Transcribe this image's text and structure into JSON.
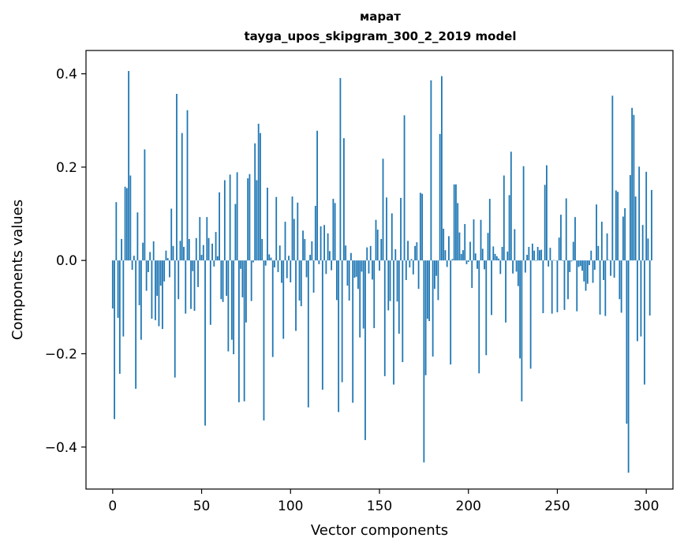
{
  "chart_data": {
    "type": "bar",
    "title_line1": "марат",
    "title_line2": "tayga_upos_skipgram_300_2_2019 model",
    "xlabel": "Vector components",
    "ylabel": "Components values",
    "xlim": [
      -15,
      315
    ],
    "ylim": [
      -0.49,
      0.45
    ],
    "xticks": [
      0,
      50,
      100,
      150,
      200,
      250,
      300
    ],
    "xtick_labels": [
      "0",
      "50",
      "100",
      "150",
      "200",
      "250",
      "300"
    ],
    "yticks": [
      -0.4,
      -0.2,
      0.0,
      0.2,
      0.4
    ],
    "ytick_labels": [
      "−0.4",
      "−0.2",
      "0.0",
      "0.2",
      "0.4"
    ],
    "bar_color": "#1f77b4",
    "values": [
      -0.103,
      -0.34,
      0.125,
      -0.123,
      -0.243,
      0.046,
      -0.163,
      0.158,
      0.155,
      0.406,
      0.182,
      -0.02,
      0.01,
      -0.275,
      0.103,
      -0.096,
      -0.17,
      0.038,
      0.238,
      -0.065,
      -0.025,
      0.018,
      -0.125,
      0.041,
      -0.128,
      -0.076,
      -0.141,
      -0.054,
      -0.147,
      -0.045,
      0.021,
      0.005,
      -0.036,
      0.111,
      0.031,
      -0.251,
      0.357,
      -0.083,
      0.042,
      0.273,
      0.029,
      -0.114,
      0.322,
      0.046,
      -0.104,
      -0.023,
      -0.108,
      0.048,
      -0.057,
      0.093,
      0.012,
      0.033,
      -0.354,
      0.093,
      0.048,
      -0.138,
      0.036,
      -0.013,
      0.061,
      0.009,
      0.146,
      -0.083,
      -0.089,
      0.172,
      -0.076,
      -0.195,
      0.184,
      -0.17,
      -0.201,
      0.121,
      0.189,
      -0.304,
      -0.018,
      -0.079,
      -0.302,
      -0.133,
      0.176,
      0.185,
      -0.087,
      -0.004,
      0.251,
      0.172,
      0.293,
      0.273,
      0.046,
      -0.343,
      -0.011,
      0.156,
      0.013,
      0.006,
      -0.207,
      -0.015,
      0.136,
      -0.025,
      0.032,
      -0.048,
      -0.168,
      0.083,
      -0.038,
      0.01,
      -0.047,
      0.137,
      0.089,
      -0.151,
      0.124,
      -0.086,
      -0.098,
      0.064,
      0.046,
      -0.036,
      -0.315,
      0.012,
      0.041,
      -0.069,
      0.117,
      0.278,
      -0.008,
      0.073,
      -0.277,
      0.076,
      -0.029,
      0.058,
      0.02,
      -0.021,
      0.132,
      0.123,
      -0.085,
      -0.325,
      0.391,
      -0.261,
      0.262,
      0.032,
      -0.054,
      -0.086,
      0.016,
      -0.305,
      -0.037,
      -0.035,
      -0.061,
      -0.165,
      -0.024,
      -0.146,
      -0.385,
      0.028,
      -0.028,
      0.031,
      -0.041,
      -0.145,
      0.087,
      0.066,
      -0.022,
      0.046,
      0.218,
      -0.248,
      0.135,
      -0.107,
      -0.087,
      0.101,
      -0.266,
      0.024,
      -0.088,
      -0.157,
      0.134,
      -0.218,
      0.311,
      -0.042,
      0.042,
      -0.015,
      0.003,
      -0.03,
      0.031,
      0.039,
      -0.061,
      0.145,
      0.143,
      -0.433,
      -0.246,
      -0.125,
      -0.13,
      0.386,
      -0.206,
      -0.061,
      -0.033,
      -0.085,
      0.271,
      0.395,
      0.068,
      0.022,
      -0.014,
      0.052,
      -0.223,
      0.003,
      0.163,
      0.163,
      0.123,
      0.06,
      0.014,
      0.022,
      0.078,
      -0.008,
      -0.003,
      0.04,
      -0.059,
      0.088,
      0.015,
      -0.018,
      -0.242,
      0.087,
      0.025,
      -0.019,
      -0.203,
      0.059,
      0.132,
      -0.117,
      0.03,
      0.014,
      0.009,
      0.004,
      -0.029,
      0.029,
      0.182,
      -0.133,
      0.019,
      0.14,
      0.233,
      -0.028,
      0.067,
      -0.024,
      -0.055,
      -0.21,
      -0.302,
      0.202,
      -0.026,
      0.012,
      0.029,
      -0.232,
      0.036,
      0.021,
      -0.001,
      0.029,
      0.022,
      0.023,
      -0.113,
      0.162,
      0.204,
      -0.013,
      0.027,
      -0.114,
      0.001,
      0.0,
      -0.111,
      0.049,
      0.098,
      -0.001,
      -0.106,
      0.133,
      -0.083,
      -0.025,
      -0.002,
      0.04,
      0.093,
      -0.109,
      -0.014,
      -0.012,
      -0.022,
      -0.045,
      -0.065,
      -0.05,
      -0.01,
      0.021,
      -0.048,
      -0.02,
      0.12,
      0.031,
      -0.116,
      0.083,
      -0.042,
      -0.119,
      0.058,
      0.001,
      -0.033,
      0.353,
      -0.037,
      0.15,
      0.147,
      -0.083,
      -0.112,
      0.094,
      0.112,
      -0.35,
      -0.455,
      0.183,
      0.327,
      0.312,
      0.137,
      -0.173,
      0.201,
      -0.163,
      0.076,
      -0.266,
      0.19,
      0.047,
      -0.118,
      0.151
    ]
  }
}
